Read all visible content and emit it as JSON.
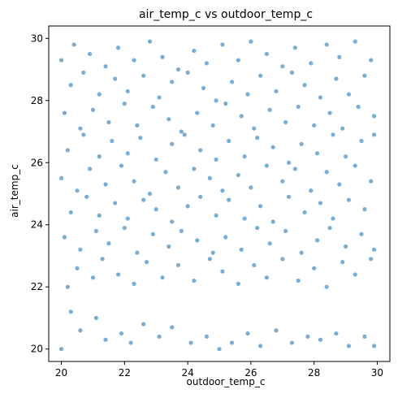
{
  "chart_data": {
    "type": "scatter",
    "title": "air_temp_c vs outdoor_temp_c",
    "xlabel": "outdoor_temp_c",
    "ylabel": "air_temp_c",
    "xlim": [
      19.6,
      30.4
    ],
    "ylim": [
      19.6,
      30.4
    ],
    "xticks": [
      20,
      22,
      24,
      26,
      28,
      30
    ],
    "yticks": [
      20,
      22,
      24,
      26,
      28,
      30
    ],
    "grid": false,
    "legend": "none",
    "point_color": "#1f77b4",
    "point_alpha": 0.6,
    "series": [
      {
        "points": [
          [
            20.0,
            20.0
          ],
          [
            20.3,
            21.2
          ],
          [
            20.6,
            20.6
          ],
          [
            21.1,
            21.0
          ],
          [
            21.4,
            20.3
          ],
          [
            21.9,
            20.5
          ],
          [
            22.2,
            20.2
          ],
          [
            22.6,
            20.8
          ],
          [
            23.1,
            20.4
          ],
          [
            23.5,
            20.7
          ],
          [
            24.1,
            20.2
          ],
          [
            24.6,
            20.4
          ],
          [
            25.0,
            20.0
          ],
          [
            25.4,
            20.2
          ],
          [
            25.9,
            20.5
          ],
          [
            26.3,
            20.1
          ],
          [
            26.8,
            20.6
          ],
          [
            27.3,
            20.2
          ],
          [
            27.8,
            20.4
          ],
          [
            28.2,
            20.3
          ],
          [
            28.7,
            20.5
          ],
          [
            29.1,
            20.1
          ],
          [
            29.6,
            20.4
          ],
          [
            29.9,
            20.1
          ],
          [
            20.2,
            22.0
          ],
          [
            20.5,
            22.6
          ],
          [
            21.0,
            22.3
          ],
          [
            21.3,
            22.9
          ],
          [
            21.8,
            22.4
          ],
          [
            22.3,
            22.1
          ],
          [
            22.7,
            22.8
          ],
          [
            23.2,
            22.3
          ],
          [
            23.7,
            22.7
          ],
          [
            24.2,
            22.2
          ],
          [
            24.7,
            22.9
          ],
          [
            25.1,
            22.5
          ],
          [
            25.6,
            22.1
          ],
          [
            26.1,
            22.7
          ],
          [
            26.5,
            22.3
          ],
          [
            27.0,
            22.9
          ],
          [
            27.5,
            22.2
          ],
          [
            28.0,
            22.6
          ],
          [
            28.4,
            22.0
          ],
          [
            28.9,
            22.8
          ],
          [
            29.3,
            22.4
          ],
          [
            29.8,
            22.9
          ],
          [
            20.1,
            23.6
          ],
          [
            20.6,
            23.2
          ],
          [
            21.1,
            23.8
          ],
          [
            21.5,
            23.4
          ],
          [
            22.0,
            23.9
          ],
          [
            22.4,
            23.1
          ],
          [
            22.9,
            23.7
          ],
          [
            23.4,
            23.3
          ],
          [
            23.8,
            23.8
          ],
          [
            24.3,
            23.5
          ],
          [
            24.8,
            23.1
          ],
          [
            25.2,
            23.6
          ],
          [
            25.7,
            23.2
          ],
          [
            26.2,
            23.9
          ],
          [
            26.6,
            23.4
          ],
          [
            27.1,
            23.8
          ],
          [
            27.6,
            23.1
          ],
          [
            28.1,
            23.5
          ],
          [
            28.5,
            23.9
          ],
          [
            29.0,
            23.3
          ],
          [
            29.5,
            23.7
          ],
          [
            29.9,
            23.2
          ],
          [
            20.3,
            24.4
          ],
          [
            20.8,
            24.9
          ],
          [
            21.2,
            24.3
          ],
          [
            21.7,
            24.7
          ],
          [
            22.1,
            24.2
          ],
          [
            22.6,
            24.8
          ],
          [
            23.0,
            24.5
          ],
          [
            23.5,
            24.1
          ],
          [
            24.0,
            24.6
          ],
          [
            24.4,
            24.9
          ],
          [
            24.9,
            24.3
          ],
          [
            25.3,
            24.8
          ],
          [
            25.8,
            24.2
          ],
          [
            26.3,
            24.6
          ],
          [
            26.7,
            24.1
          ],
          [
            27.2,
            24.9
          ],
          [
            27.7,
            24.4
          ],
          [
            28.2,
            24.7
          ],
          [
            28.6,
            24.2
          ],
          [
            29.1,
            24.8
          ],
          [
            29.6,
            24.5
          ],
          [
            20.0,
            25.5
          ],
          [
            20.5,
            25.1
          ],
          [
            20.9,
            25.8
          ],
          [
            21.4,
            25.3
          ],
          [
            21.9,
            25.9
          ],
          [
            22.3,
            25.4
          ],
          [
            22.8,
            25.0
          ],
          [
            23.3,
            25.7
          ],
          [
            23.7,
            25.2
          ],
          [
            24.2,
            25.8
          ],
          [
            24.7,
            25.5
          ],
          [
            25.1,
            25.1
          ],
          [
            25.6,
            25.6
          ],
          [
            26.0,
            25.2
          ],
          [
            26.5,
            25.9
          ],
          [
            27.0,
            25.4
          ],
          [
            27.4,
            25.8
          ],
          [
            27.9,
            25.1
          ],
          [
            28.4,
            25.7
          ],
          [
            28.8,
            25.3
          ],
          [
            29.3,
            25.9
          ],
          [
            29.8,
            25.4
          ],
          [
            20.2,
            26.4
          ],
          [
            20.7,
            26.9
          ],
          [
            21.2,
            26.2
          ],
          [
            21.6,
            26.7
          ],
          [
            22.1,
            26.3
          ],
          [
            22.5,
            26.8
          ],
          [
            23.0,
            26.1
          ],
          [
            23.5,
            26.6
          ],
          [
            23.9,
            26.9
          ],
          [
            24.4,
            26.4
          ],
          [
            24.9,
            26.1
          ],
          [
            25.3,
            26.7
          ],
          [
            25.8,
            26.2
          ],
          [
            26.2,
            26.8
          ],
          [
            26.7,
            26.5
          ],
          [
            27.2,
            26.0
          ],
          [
            27.6,
            26.6
          ],
          [
            28.1,
            26.3
          ],
          [
            28.6,
            26.9
          ],
          [
            29.0,
            26.2
          ],
          [
            29.5,
            26.7
          ],
          [
            29.9,
            26.9
          ],
          [
            20.1,
            27.6
          ],
          [
            20.6,
            27.1
          ],
          [
            21.0,
            27.7
          ],
          [
            21.5,
            27.3
          ],
          [
            22.0,
            27.9
          ],
          [
            22.4,
            27.2
          ],
          [
            22.9,
            27.8
          ],
          [
            23.4,
            27.4
          ],
          [
            23.8,
            27.0
          ],
          [
            24.3,
            27.6
          ],
          [
            24.8,
            27.2
          ],
          [
            25.2,
            27.9
          ],
          [
            25.7,
            27.5
          ],
          [
            26.1,
            27.1
          ],
          [
            26.6,
            27.7
          ],
          [
            27.1,
            27.3
          ],
          [
            27.5,
            27.8
          ],
          [
            28.0,
            27.2
          ],
          [
            28.5,
            27.6
          ],
          [
            28.9,
            27.1
          ],
          [
            29.4,
            27.8
          ],
          [
            29.9,
            27.5
          ],
          [
            20.3,
            28.5
          ],
          [
            20.7,
            28.9
          ],
          [
            21.2,
            28.2
          ],
          [
            21.7,
            28.7
          ],
          [
            22.1,
            28.3
          ],
          [
            22.6,
            28.8
          ],
          [
            23.1,
            28.1
          ],
          [
            23.5,
            28.6
          ],
          [
            24.0,
            28.9
          ],
          [
            24.5,
            28.4
          ],
          [
            24.9,
            28.0
          ],
          [
            25.4,
            28.6
          ],
          [
            25.9,
            28.2
          ],
          [
            26.3,
            28.8
          ],
          [
            26.8,
            28.3
          ],
          [
            27.3,
            28.9
          ],
          [
            27.7,
            28.5
          ],
          [
            28.2,
            28.1
          ],
          [
            28.7,
            28.7
          ],
          [
            29.1,
            28.2
          ],
          [
            29.6,
            28.8
          ],
          [
            20.0,
            29.3
          ],
          [
            20.4,
            29.8
          ],
          [
            20.9,
            29.5
          ],
          [
            21.4,
            29.1
          ],
          [
            21.8,
            29.7
          ],
          [
            22.3,
            29.3
          ],
          [
            22.8,
            29.9
          ],
          [
            23.2,
            29.4
          ],
          [
            23.7,
            29.0
          ],
          [
            24.2,
            29.6
          ],
          [
            24.6,
            29.2
          ],
          [
            25.1,
            29.8
          ],
          [
            25.6,
            29.3
          ],
          [
            26.0,
            29.9
          ],
          [
            26.5,
            29.5
          ],
          [
            27.0,
            29.1
          ],
          [
            27.4,
            29.7
          ],
          [
            27.9,
            29.2
          ],
          [
            28.4,
            29.8
          ],
          [
            28.8,
            29.4
          ],
          [
            29.3,
            29.9
          ],
          [
            29.8,
            29.3
          ]
        ]
      }
    ]
  }
}
